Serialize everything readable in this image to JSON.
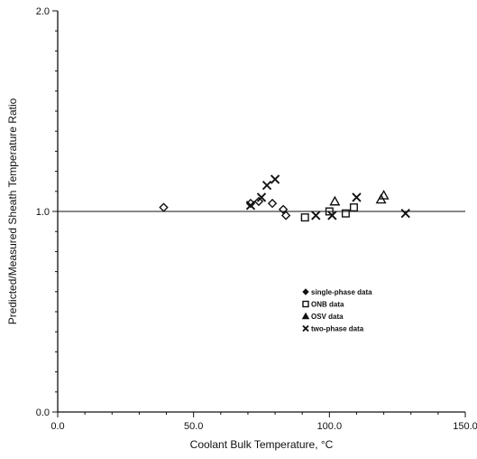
{
  "chart_data": {
    "type": "scatter",
    "title": "",
    "xlabel": "Coolant Bulk Temperature, °C",
    "ylabel": "Predicted/Measured Sheath Temperature Ratio",
    "xlim": [
      0,
      150
    ],
    "ylim": [
      0,
      2
    ],
    "x_ticks": [
      0,
      50,
      100,
      150
    ],
    "x_tick_labels": [
      "0.0",
      "50.0",
      "100.0",
      "150.0"
    ],
    "y_ticks": [
      0,
      1,
      2
    ],
    "y_tick_labels": [
      "0.0",
      "1.0",
      "2.0"
    ],
    "reference_line_y": 1.0,
    "grid": false,
    "legend_position": "lower-right",
    "series": [
      {
        "name": "single-phase data",
        "marker": "diamond",
        "points": [
          [
            39,
            1.02
          ],
          [
            71,
            1.04
          ],
          [
            74,
            1.05
          ],
          [
            79,
            1.04
          ],
          [
            83,
            1.01
          ],
          [
            84,
            0.98
          ]
        ]
      },
      {
        "name": "ONB data",
        "marker": "square",
        "points": [
          [
            91,
            0.97
          ],
          [
            100,
            1.0
          ],
          [
            106,
            0.99
          ],
          [
            109,
            1.02
          ]
        ]
      },
      {
        "name": "OSV data",
        "marker": "triangle",
        "points": [
          [
            102,
            1.05
          ],
          [
            119,
            1.06
          ],
          [
            120,
            1.08
          ]
        ]
      },
      {
        "name": "two-phase data",
        "marker": "cross",
        "points": [
          [
            71,
            1.03
          ],
          [
            75,
            1.07
          ],
          [
            77,
            1.13
          ],
          [
            80,
            1.16
          ],
          [
            95,
            0.98
          ],
          [
            101,
            0.98
          ],
          [
            110,
            1.07
          ],
          [
            128,
            0.99
          ]
        ]
      }
    ]
  }
}
